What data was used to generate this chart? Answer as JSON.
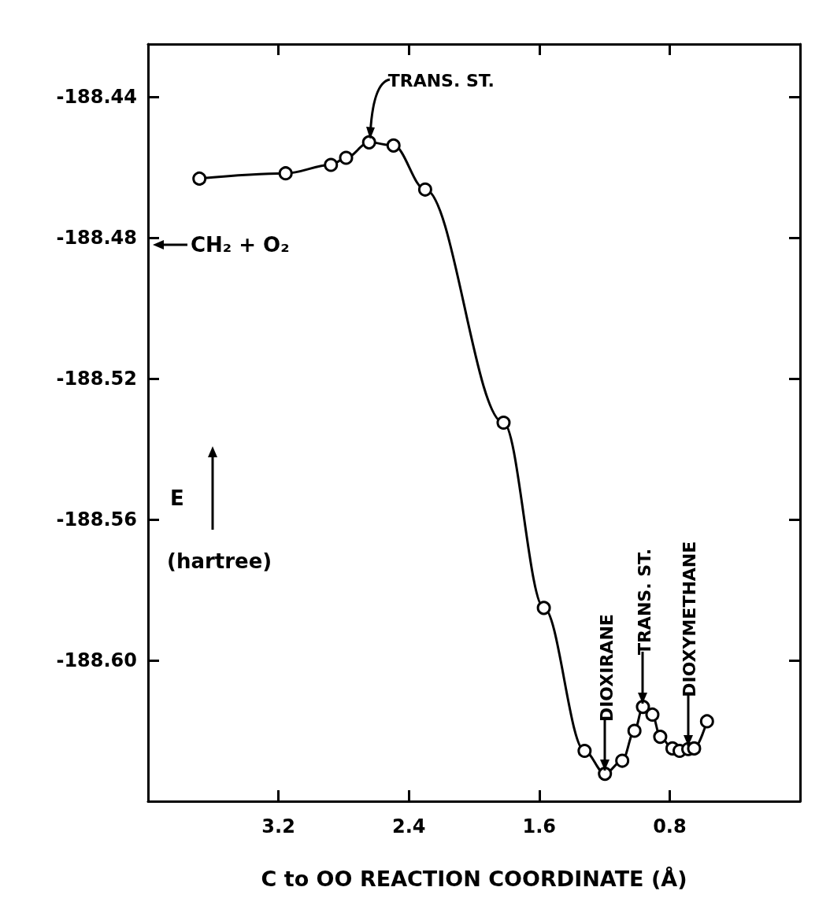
{
  "chart_data": {
    "type": "line",
    "xlabel": "C to OO REACTION COORDINATE (Å)",
    "ylabel": "E (hartree)",
    "xlim": [
      4.0,
      0.0
    ],
    "xticks": [
      3.2,
      2.4,
      1.6,
      0.8
    ],
    "ylim": [
      -188.64,
      -188.425
    ],
    "yticks": [
      -188.44,
      -188.48,
      -188.52,
      -188.56,
      {
        "value": -188.6,
        "label": "-188.60"
      }
    ],
    "marker": "circle",
    "line_style": "solid",
    "grid": false,
    "series": [
      {
        "color": "#000000",
        "x": [
          3.685,
          3.156,
          2.878,
          2.785,
          2.644,
          2.494,
          2.3,
          1.819,
          1.572,
          1.322,
          1.197,
          1.091,
          1.016,
          0.964,
          0.906,
          0.858,
          0.783,
          0.739,
          0.686,
          0.65,
          0.571
        ],
        "values": [
          -188.4632,
          -188.4617,
          -188.4593,
          -188.4573,
          -188.4529,
          -188.4538,
          -188.4663,
          -188.5325,
          -188.5851,
          -188.6257,
          -188.6322,
          -188.6285,
          -188.62,
          -188.6132,
          -188.6154,
          -188.6217,
          -188.625,
          -188.6257,
          -188.6252,
          -188.625,
          -188.6173
        ]
      }
    ],
    "annotations": [
      {
        "text": "TRANS. ST.",
        "x": 2.644,
        "y": -188.4529
      },
      "CH₂ + O₂",
      {
        "text": "DIOXIRANE",
        "x": 1.197,
        "y": -188.6322
      },
      {
        "text": "TRANS. ST.",
        "x": 0.964,
        "y": -188.6132
      },
      {
        "text": "DIOXYMETHANE",
        "x": 0.686,
        "y": -188.6252
      }
    ]
  }
}
